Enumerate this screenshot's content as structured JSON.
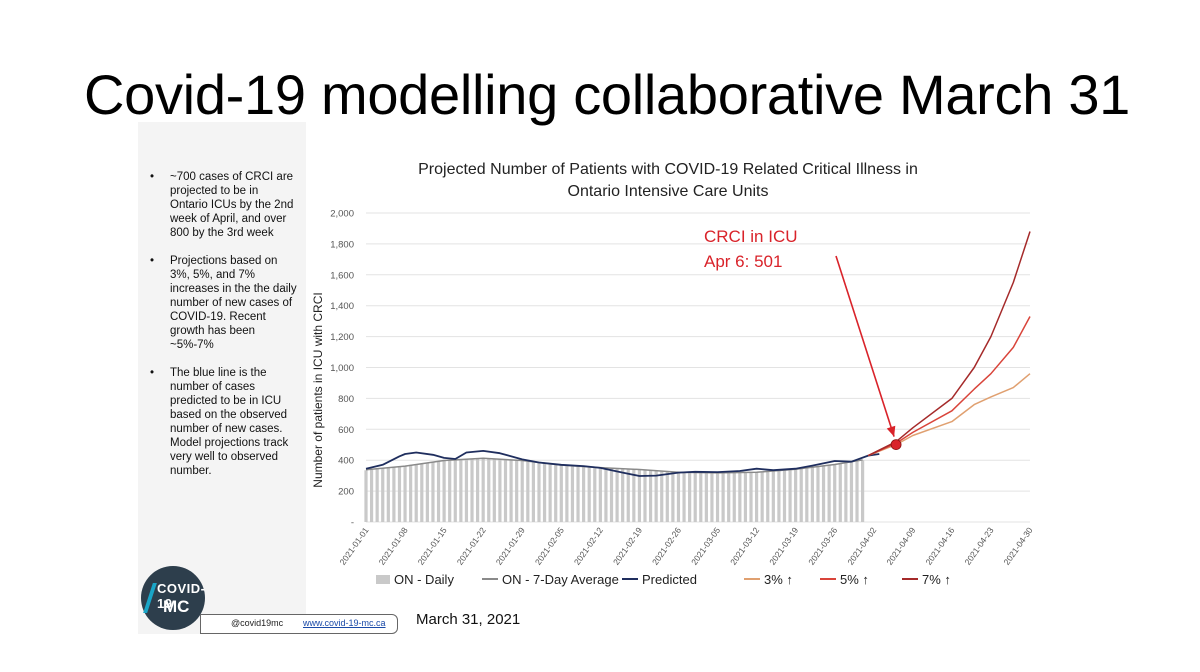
{
  "slide": {
    "title": "Covid-19 modelling collaborative March 31",
    "bullets": [
      "~700 cases of CRCI are projected to be in Ontario ICUs by the 2nd week of April, and over 800 by the 3rd week",
      "Projections based on 3%, 5%, and 7% increases in the the daily number of new cases of COVID-19. Recent growth has been ~5%-7%",
      "The blue line is the number of cases predicted to be in ICU based on the observed number of new cases. Model projections track very well to observed number."
    ],
    "logo_line1": "COVID-19",
    "logo_line2": "MC",
    "handle": "@covid19mc",
    "website": "www.covid-19-mc.ca",
    "date": "March 31, 2021"
  },
  "chart_data": {
    "type": "bar",
    "title_line1": "Projected Number of Patients with COVID-19 Related Critical Illness in",
    "title_line2": "Ontario Intensive Care Units",
    "xlabel": "",
    "ylabel": "Number of patients in ICU with CRCI",
    "ylim": [
      0,
      2000
    ],
    "yticks": [
      "2,000",
      "1,800",
      "1,600",
      "1,400",
      "1,200",
      "1,000",
      "800",
      "600",
      "400",
      "200",
      "-"
    ],
    "ytick_values": [
      2000,
      1800,
      1600,
      1400,
      1200,
      1000,
      800,
      600,
      400,
      200,
      0
    ],
    "x_start": "2021-01-01",
    "x_end": "2021-04-30",
    "xticks": [
      "2021-01-01",
      "2021-01-08",
      "2021-01-15",
      "2021-01-22",
      "2021-01-29",
      "2021-02-05",
      "2021-02-12",
      "2021-02-19",
      "2021-02-26",
      "2021-03-05",
      "2021-03-12",
      "2021-03-19",
      "2021-03-26",
      "2021-04-02",
      "2021-04-09",
      "2021-04-16",
      "2021-04-23",
      "2021-04-30"
    ],
    "grid": "horizontal",
    "legend_placement": "bottom",
    "series": [
      {
        "name": "ON - Daily",
        "kind": "bar",
        "color": "#c9c9c9",
        "points": [
          [
            "2021-01-01",
            335
          ],
          [
            "2021-01-08",
            365
          ],
          [
            "2021-01-15",
            400
          ],
          [
            "2021-01-22",
            415
          ],
          [
            "2021-01-29",
            395
          ],
          [
            "2021-02-05",
            365
          ],
          [
            "2021-02-12",
            350
          ],
          [
            "2021-02-19",
            340
          ],
          [
            "2021-02-26",
            320
          ],
          [
            "2021-03-05",
            315
          ],
          [
            "2021-03-12",
            320
          ],
          [
            "2021-03-19",
            340
          ],
          [
            "2021-03-26",
            370
          ],
          [
            "2021-03-31",
            400
          ]
        ]
      },
      {
        "name": "ON - 7-Day Average",
        "kind": "line",
        "color": "#8a8a8a",
        "points": [
          [
            "2021-01-01",
            338
          ],
          [
            "2021-01-08",
            362
          ],
          [
            "2021-01-15",
            398
          ],
          [
            "2021-01-22",
            412
          ],
          [
            "2021-01-29",
            398
          ],
          [
            "2021-02-05",
            368
          ],
          [
            "2021-02-12",
            352
          ],
          [
            "2021-02-19",
            340
          ],
          [
            "2021-02-26",
            322
          ],
          [
            "2021-03-05",
            318
          ],
          [
            "2021-03-12",
            322
          ],
          [
            "2021-03-19",
            342
          ],
          [
            "2021-03-26",
            372
          ],
          [
            "2021-03-31",
            402
          ]
        ]
      },
      {
        "name": "Predicted",
        "kind": "line",
        "color": "#1f2e5e",
        "points": [
          [
            "2021-01-01",
            345
          ],
          [
            "2021-01-04",
            370
          ],
          [
            "2021-01-07",
            425
          ],
          [
            "2021-01-08",
            440
          ],
          [
            "2021-01-10",
            450
          ],
          [
            "2021-01-13",
            435
          ],
          [
            "2021-01-15",
            415
          ],
          [
            "2021-01-17",
            408
          ],
          [
            "2021-01-19",
            450
          ],
          [
            "2021-01-22",
            460
          ],
          [
            "2021-01-25",
            445
          ],
          [
            "2021-01-29",
            405
          ],
          [
            "2021-02-01",
            385
          ],
          [
            "2021-02-05",
            370
          ],
          [
            "2021-02-09",
            362
          ],
          [
            "2021-02-12",
            350
          ],
          [
            "2021-02-16",
            320
          ],
          [
            "2021-02-19",
            298
          ],
          [
            "2021-02-22",
            300
          ],
          [
            "2021-02-26",
            320
          ],
          [
            "2021-03-01",
            325
          ],
          [
            "2021-03-05",
            323
          ],
          [
            "2021-03-09",
            330
          ],
          [
            "2021-03-12",
            345
          ],
          [
            "2021-03-15",
            335
          ],
          [
            "2021-03-19",
            345
          ],
          [
            "2021-03-22",
            365
          ],
          [
            "2021-03-26",
            395
          ],
          [
            "2021-03-29",
            390
          ],
          [
            "2021-04-01",
            430
          ],
          [
            "2021-04-03",
            440
          ]
        ]
      },
      {
        "name": "3% ↑",
        "kind": "line",
        "color": "#e0a070",
        "points": [
          [
            "2021-04-01",
            430
          ],
          [
            "2021-04-06",
            501
          ],
          [
            "2021-04-09",
            560
          ],
          [
            "2021-04-16",
            650
          ],
          [
            "2021-04-20",
            760
          ],
          [
            "2021-04-23",
            810
          ],
          [
            "2021-04-27",
            870
          ],
          [
            "2021-04-30",
            960
          ]
        ]
      },
      {
        "name": "5% ↑",
        "kind": "line",
        "color": "#d9443a",
        "points": [
          [
            "2021-04-01",
            430
          ],
          [
            "2021-04-06",
            510
          ],
          [
            "2021-04-09",
            580
          ],
          [
            "2021-04-16",
            720
          ],
          [
            "2021-04-20",
            860
          ],
          [
            "2021-04-23",
            960
          ],
          [
            "2021-04-27",
            1130
          ],
          [
            "2021-04-30",
            1330
          ]
        ]
      },
      {
        "name": "7% ↑",
        "kind": "line",
        "color": "#a52a2a",
        "points": [
          [
            "2021-04-01",
            430
          ],
          [
            "2021-04-06",
            520
          ],
          [
            "2021-04-09",
            610
          ],
          [
            "2021-04-16",
            800
          ],
          [
            "2021-04-20",
            1000
          ],
          [
            "2021-04-23",
            1200
          ],
          [
            "2021-04-27",
            1550
          ],
          [
            "2021-04-30",
            1880
          ]
        ]
      }
    ],
    "annotation": {
      "line1": "CRCI in ICU",
      "line2": "Apr 6: 501",
      "date": "2021-04-06",
      "value": 501,
      "color": "#d9232a"
    }
  }
}
